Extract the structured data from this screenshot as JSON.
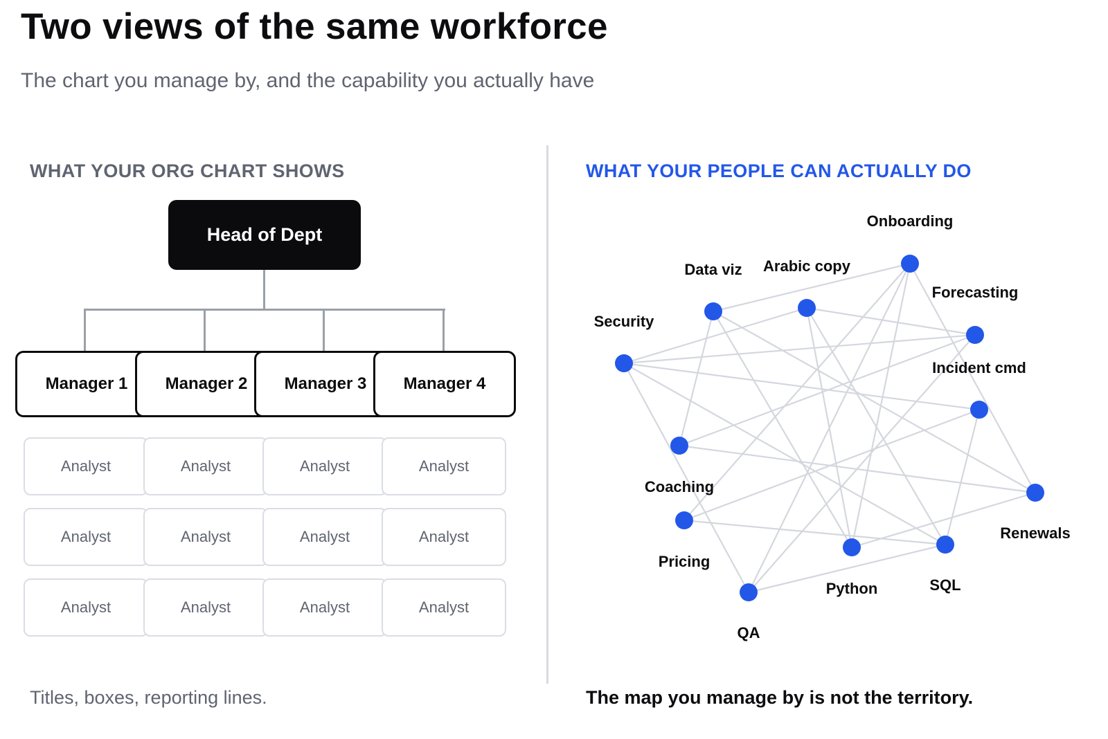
{
  "header": {
    "title": "Two views of the same workforce",
    "subtitle": "The chart you manage by, and the capability you actually have"
  },
  "org_chart": {
    "heading": "WHAT YOUR ORG CHART SHOWS",
    "head": "Head of Dept",
    "managers": [
      "Manager 1",
      "Manager 2",
      "Manager 3",
      "Manager 4"
    ],
    "analyst_label": "Analyst",
    "analyst_rows": 3,
    "caption": "Titles, boxes, reporting lines."
  },
  "capability_map": {
    "heading": "WHAT YOUR PEOPLE CAN ACTUALLY DO",
    "caption": "The map you manage by is not the territory.",
    "nodes": [
      "Onboarding",
      "Data viz",
      "Arabic copy",
      "Forecasting",
      "Security",
      "Incident cmd",
      "Coaching",
      "Renewals",
      "Pricing",
      "Python",
      "SQL",
      "QA"
    ],
    "edges": [
      [
        "Data viz",
        "Onboarding"
      ],
      [
        "Data viz",
        "Coaching"
      ],
      [
        "Data viz",
        "Python"
      ],
      [
        "Data viz",
        "Renewals"
      ],
      [
        "Arabic copy",
        "Security"
      ],
      [
        "Arabic copy",
        "Forecasting"
      ],
      [
        "Arabic copy",
        "SQL"
      ],
      [
        "Arabic copy",
        "Python"
      ],
      [
        "Onboarding",
        "Python"
      ],
      [
        "Onboarding",
        "Renewals"
      ],
      [
        "Onboarding",
        "QA"
      ],
      [
        "Security",
        "Forecasting"
      ],
      [
        "Security",
        "Incident cmd"
      ],
      [
        "Security",
        "SQL"
      ],
      [
        "Security",
        "QA"
      ],
      [
        "Forecasting",
        "Coaching"
      ],
      [
        "Forecasting",
        "QA"
      ],
      [
        "Coaching",
        "Renewals"
      ],
      [
        "Incident cmd",
        "Pricing"
      ],
      [
        "Incident cmd",
        "SQL"
      ],
      [
        "Pricing",
        "Onboarding"
      ],
      [
        "Pricing",
        "SQL"
      ],
      [
        "Python",
        "Renewals"
      ],
      [
        "QA",
        "SQL"
      ]
    ]
  }
}
